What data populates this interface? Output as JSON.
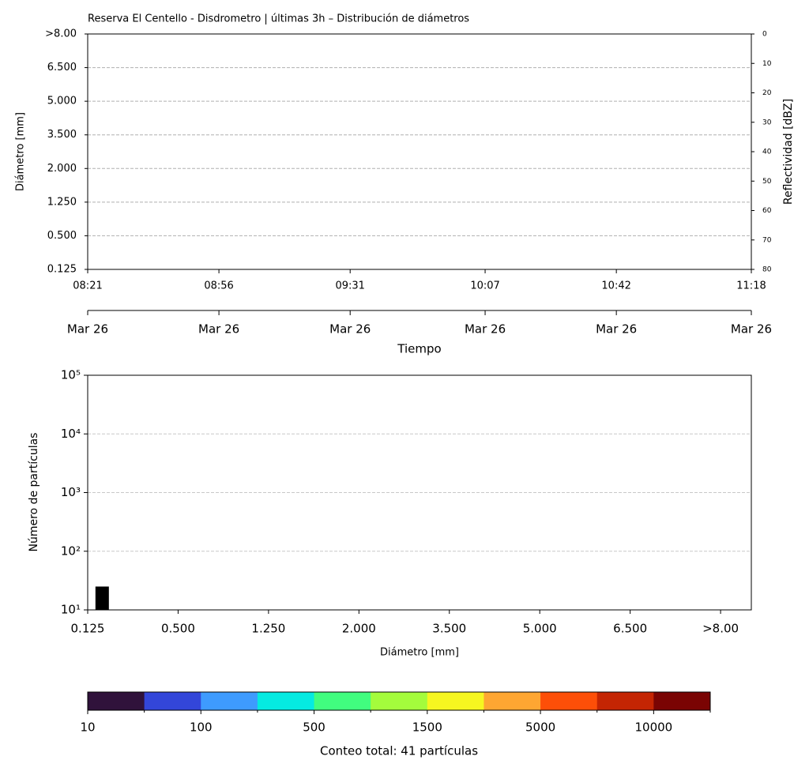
{
  "chart_data": [
    {
      "type": "heatmap",
      "title": "Reserva El Centello - Disdrometro | últimas 3h – Distribución de diámetros",
      "ylabel": "Diámetro [mm]",
      "y2label": "Reflectividad [dBZ]",
      "xlabel": "Tiempo",
      "yticks": [
        "0.125",
        "0.500",
        "1.250",
        "2.000",
        "3.500",
        "5.000",
        "6.500",
        ">8.00"
      ],
      "xlim": [
        501,
        678
      ],
      "xticks": [
        {
          "value": 501,
          "label": "08:21"
        },
        {
          "value": 536,
          "label": "08:56"
        },
        {
          "value": 571,
          "label": "09:31"
        },
        {
          "value": 607,
          "label": "10:07"
        },
        {
          "value": 642,
          "label": "10:42"
        },
        {
          "value": 678,
          "label": "11:18"
        }
      ],
      "xticks2": [
        {
          "value": 501,
          "label": "Mar 26"
        },
        {
          "value": 536,
          "label": "Mar 26"
        },
        {
          "value": 571,
          "label": "Mar 26"
        },
        {
          "value": 607,
          "label": "Mar 26"
        },
        {
          "value": 642,
          "label": "Mar 26"
        },
        {
          "value": 678,
          "label": "Mar 26"
        }
      ],
      "y2lim": [
        0,
        80
      ],
      "y2_inverted": true,
      "y2ticks": [
        0,
        10,
        20,
        30,
        40,
        50,
        60,
        70,
        80
      ],
      "grid": true
    },
    {
      "type": "bar",
      "ylabel": "Número de partículas",
      "xlabel": "Diámetro [mm]",
      "x": [
        0.8
      ],
      "values": [
        25
      ],
      "color": "#000000",
      "xlim": [
        0,
        36.7
      ],
      "xticks": [
        {
          "value": 0,
          "label": "0.125"
        },
        {
          "value": 5,
          "label": "0.500"
        },
        {
          "value": 10,
          "label": "1.250"
        },
        {
          "value": 15,
          "label": "2.000"
        },
        {
          "value": 20,
          "label": "3.500"
        },
        {
          "value": 25,
          "label": "5.000"
        },
        {
          "value": 30,
          "label": "6.500"
        },
        {
          "value": 35,
          "label": ">8.00"
        }
      ],
      "ylim": [
        10,
        100000
      ],
      "log_scale": true,
      "yticks": [
        {
          "value": 10,
          "label": "10¹"
        },
        {
          "value": 100,
          "label": "10²"
        },
        {
          "value": 1000,
          "label": "10³"
        },
        {
          "value": 10000,
          "label": "10⁴"
        },
        {
          "value": 100000,
          "label": "10⁵"
        }
      ],
      "grid": true
    },
    {
      "type": "colorbar",
      "xlabel": "Conteo total: 41 partículas",
      "colors": [
        "#30123b",
        "#3346d9",
        "#3e9bfe",
        "#05eae1",
        "#41fd7f",
        "#a4fc3c",
        "#f6f620",
        "#fea632",
        "#fd4f08",
        "#c42503",
        "#7a0403"
      ],
      "boundaries": [
        10,
        null,
        100,
        null,
        500,
        null,
        1500,
        null,
        5000,
        null,
        10000,
        null
      ]
    }
  ]
}
